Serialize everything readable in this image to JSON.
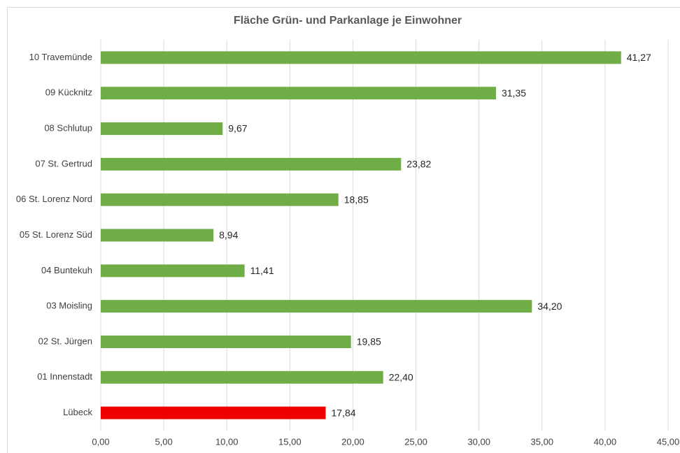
{
  "chart_data": {
    "type": "hbar",
    "title": "Fläche Grün- und Parkanlage je Einwohner",
    "categories": [
      "10 Travemünde",
      "09 Kücknitz",
      "08 Schlutup",
      "07 St. Gertrud",
      "06 St. Lorenz Nord",
      "05 St. Lorenz Süd",
      "04 Buntekuh",
      "03 Moisling",
      "02 St. Jürgen",
      "01 Innenstadt",
      "Lübeck"
    ],
    "values": [
      41.27,
      31.35,
      9.67,
      23.82,
      18.85,
      8.94,
      11.41,
      34.2,
      19.85,
      22.4,
      17.84
    ],
    "value_labels": [
      "41,27",
      "31,35",
      "9,67",
      "23,82",
      "18,85",
      "8,94",
      "11,41",
      "34,20",
      "19,85",
      "22,40",
      "17,84"
    ],
    "colors": [
      "#70ad47",
      "#70ad47",
      "#70ad47",
      "#70ad47",
      "#70ad47",
      "#70ad47",
      "#70ad47",
      "#70ad47",
      "#70ad47",
      "#70ad47",
      "#ee0000"
    ],
    "xlim": [
      0,
      45
    ],
    "xticks": [
      {
        "value": 0,
        "label": "0,00"
      },
      {
        "value": 5,
        "label": "5,00"
      },
      {
        "value": 10,
        "label": "10,00"
      },
      {
        "value": 15,
        "label": "15,00"
      },
      {
        "value": 20,
        "label": "20,00"
      },
      {
        "value": 25,
        "label": "25,00"
      },
      {
        "value": 30,
        "label": "30,00"
      },
      {
        "value": 35,
        "label": "35,00"
      },
      {
        "value": 40,
        "label": "40,00"
      },
      {
        "value": 45,
        "label": "45,00"
      }
    ],
    "grid": true
  }
}
